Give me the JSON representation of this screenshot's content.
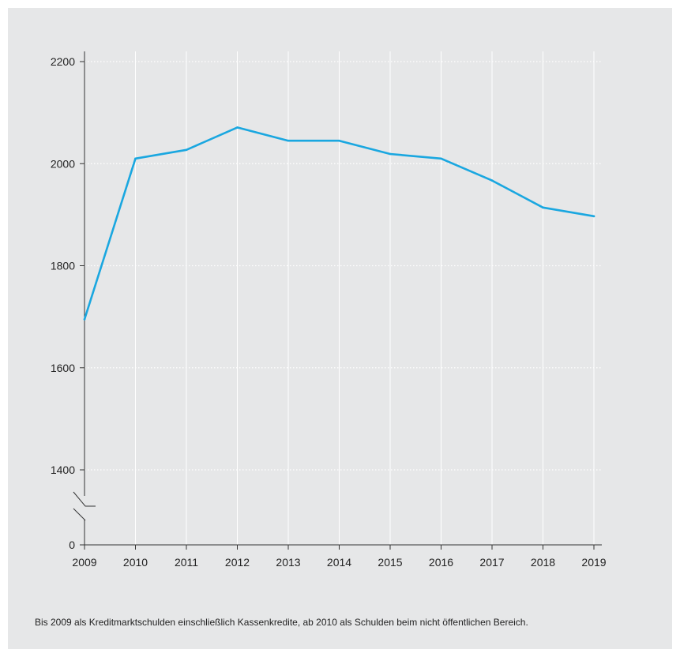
{
  "chart_data": {
    "type": "line",
    "title": "",
    "xlabel": "",
    "ylabel": "",
    "x": [
      "2009",
      "2010",
      "2011",
      "2012",
      "2013",
      "2014",
      "2015",
      "2016",
      "2017",
      "2018",
      "2019"
    ],
    "series": [
      {
        "color": "#1aa7e0",
        "values": [
          1695,
          2010,
          2027,
          2071,
          2045,
          2045,
          2019,
          2010,
          1967,
          1914,
          1897
        ]
      }
    ],
    "ylim": [
      1300,
      2220
    ],
    "axis_break": true,
    "y_ticks": [
      0,
      1400,
      1600,
      1800,
      2000,
      2200
    ],
    "y_tick_labels": [
      "0",
      "1400",
      "1600",
      "1800",
      "2000",
      "2200"
    ],
    "grid": true,
    "legend": "none"
  },
  "footnote": "Bis 2009 als Kreditmarktschulden einschließlich Kassenkredite, ab 2010 als Schulden beim nicht öffentlichen Bereich.",
  "colors": {
    "background": "#e6e7e8",
    "line": "#1aa7e0",
    "axis": "#333333",
    "grid": "#ffffff"
  }
}
